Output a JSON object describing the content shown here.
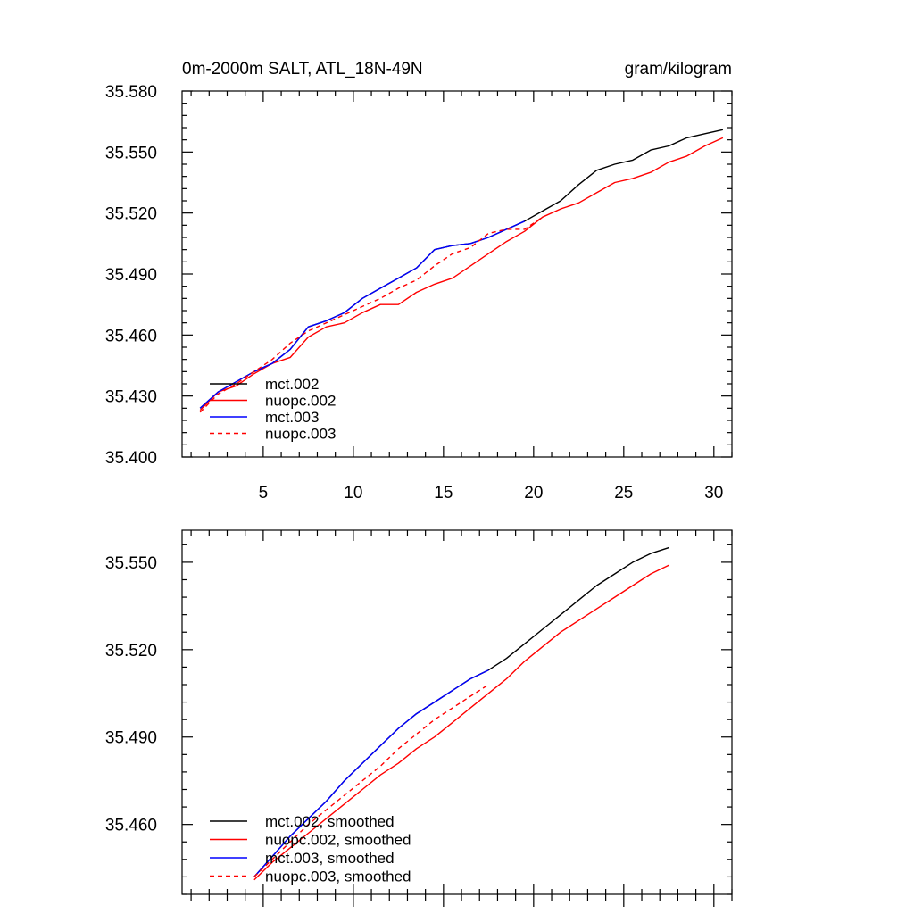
{
  "chart_data": [
    {
      "type": "line",
      "title_left": "0m-2000m SALT, ATL_18N-49N",
      "title_right": "gram/kilogram",
      "xlim": [
        0.5,
        31
      ],
      "ylim": [
        35.4,
        35.58
      ],
      "x_ticks": [
        5,
        10,
        15,
        20,
        25,
        30
      ],
      "x_tick_labels": [
        "5",
        "10",
        "15",
        "20",
        "25",
        "30"
      ],
      "y_ticks": [
        35.4,
        35.43,
        35.46,
        35.49,
        35.52,
        35.55,
        35.58
      ],
      "y_tick_labels": [
        "35.400",
        "35.430",
        "35.460",
        "35.490",
        "35.520",
        "35.550",
        "35.580"
      ],
      "legend_position": "bottom-left",
      "series": [
        {
          "name": "mct.002",
          "color": "#000000",
          "dash": "solid",
          "x": [
            1.5,
            2.5,
            3.5,
            4.5,
            5.5,
            6.5,
            7.5,
            8.5,
            9.5,
            10.5,
            11.5,
            12.5,
            13.5,
            14.5,
            15.5,
            16.5,
            17.5,
            18.5,
            19.5,
            20.5,
            21.5,
            22.5,
            23.5,
            24.5,
            25.5,
            26.5,
            27.5,
            28.5,
            29.5,
            30.5
          ],
          "values": [
            35.424,
            35.432,
            35.437,
            35.442,
            35.446,
            35.453,
            35.464,
            35.467,
            35.471,
            35.478,
            35.483,
            35.488,
            35.493,
            35.502,
            35.504,
            35.505,
            35.508,
            35.512,
            35.516,
            35.521,
            35.526,
            35.534,
            35.541,
            35.544,
            35.546,
            35.551,
            35.553,
            35.557,
            35.559,
            35.561
          ]
        },
        {
          "name": "nuopc.002",
          "color": "#ff0000",
          "dash": "solid",
          "x": [
            1.5,
            2.5,
            3.5,
            4.5,
            5.5,
            6.5,
            7.5,
            8.5,
            9.5,
            10.5,
            11.5,
            12.5,
            13.5,
            14.5,
            15.5,
            16.5,
            17.5,
            18.5,
            19.5,
            20.5,
            21.5,
            22.5,
            23.5,
            24.5,
            25.5,
            26.5,
            27.5,
            28.5,
            29.5,
            30.5
          ],
          "values": [
            35.423,
            35.432,
            35.435,
            35.441,
            35.446,
            35.449,
            35.459,
            35.464,
            35.466,
            35.471,
            35.475,
            35.475,
            35.481,
            35.485,
            35.488,
            35.494,
            35.5,
            35.506,
            35.511,
            35.518,
            35.522,
            35.525,
            35.53,
            35.535,
            35.537,
            35.54,
            35.545,
            35.548,
            35.553,
            35.557
          ]
        },
        {
          "name": "mct.003",
          "color": "#0000ff",
          "dash": "solid",
          "x": [
            1.5,
            2.5,
            3.5,
            4.5,
            5.5,
            6.5,
            7.5,
            8.5,
            9.5,
            10.5,
            11.5,
            12.5,
            13.5,
            14.5,
            15.5,
            16.5,
            17.5,
            18.5,
            19.5
          ],
          "values": [
            35.424,
            35.432,
            35.437,
            35.442,
            35.446,
            35.453,
            35.464,
            35.467,
            35.471,
            35.478,
            35.483,
            35.488,
            35.493,
            35.502,
            35.504,
            35.505,
            35.508,
            35.512,
            35.516
          ]
        },
        {
          "name": "nuopc.003",
          "color": "#ff0000",
          "dash": "dashed",
          "x": [
            1.5,
            2.5,
            3.5,
            4.5,
            5.5,
            6.5,
            7.5,
            8.5,
            9.5,
            10.5,
            11.5,
            12.5,
            13.5,
            14.5,
            15.5,
            16.5,
            17.5,
            18.5,
            19.5,
            20.5
          ],
          "values": [
            35.422,
            35.431,
            35.436,
            35.442,
            35.448,
            35.456,
            35.462,
            35.466,
            35.47,
            35.474,
            35.478,
            35.483,
            35.487,
            35.494,
            35.5,
            35.503,
            35.51,
            35.512,
            35.512,
            35.518
          ]
        }
      ]
    },
    {
      "type": "line",
      "xlim": [
        0.5,
        31
      ],
      "ylim": [
        35.436,
        35.561
      ],
      "x_ticks": [
        5,
        10,
        15,
        20,
        25,
        30
      ],
      "y_ticks": [
        35.46,
        35.49,
        35.52,
        35.55
      ],
      "y_tick_labels": [
        "35.460",
        "35.490",
        "35.520",
        "35.550"
      ],
      "legend_position": "bottom-left",
      "series": [
        {
          "name": "mct.002, smoothed",
          "color": "#000000",
          "dash": "solid",
          "x": [
            4.5,
            5.5,
            6.5,
            7.5,
            8.5,
            9.5,
            10.5,
            11.5,
            12.5,
            13.5,
            14.5,
            15.5,
            16.5,
            17.5,
            18.5,
            19.5,
            20.5,
            21.5,
            22.5,
            23.5,
            24.5,
            25.5,
            26.5,
            27.5
          ],
          "values": [
            35.442,
            35.449,
            35.456,
            35.462,
            35.468,
            35.475,
            35.481,
            35.487,
            35.493,
            35.498,
            35.502,
            35.506,
            35.51,
            35.513,
            35.517,
            35.522,
            35.527,
            35.532,
            35.537,
            35.542,
            35.546,
            35.55,
            35.553,
            35.555
          ]
        },
        {
          "name": "nuopc.002, smoothed",
          "color": "#ff0000",
          "dash": "solid",
          "x": [
            4.5,
            5.5,
            6.5,
            7.5,
            8.5,
            9.5,
            10.5,
            11.5,
            12.5,
            13.5,
            14.5,
            15.5,
            16.5,
            17.5,
            18.5,
            19.5,
            20.5,
            21.5,
            22.5,
            23.5,
            24.5,
            25.5,
            26.5,
            27.5
          ],
          "values": [
            35.441,
            35.447,
            35.452,
            35.457,
            35.462,
            35.467,
            35.472,
            35.477,
            35.481,
            35.486,
            35.49,
            35.495,
            35.5,
            35.505,
            35.51,
            35.516,
            35.521,
            35.526,
            35.53,
            35.534,
            35.538,
            35.542,
            35.546,
            35.549
          ]
        },
        {
          "name": "mct.003, smoothed",
          "color": "#0000ff",
          "dash": "solid",
          "x": [
            4.5,
            5.5,
            6.5,
            7.5,
            8.5,
            9.5,
            10.5,
            11.5,
            12.5,
            13.5,
            14.5,
            15.5,
            16.5,
            17.5
          ],
          "values": [
            35.442,
            35.449,
            35.456,
            35.462,
            35.468,
            35.475,
            35.481,
            35.487,
            35.493,
            35.498,
            35.502,
            35.506,
            35.51,
            35.513
          ]
        },
        {
          "name": "nuopc.003, smoothed",
          "color": "#ff0000",
          "dash": "dashed",
          "x": [
            4.5,
            5.5,
            6.5,
            7.5,
            8.5,
            9.5,
            10.5,
            11.5,
            12.5,
            13.5,
            14.5,
            15.5,
            16.5,
            17.5
          ],
          "values": [
            35.442,
            35.448,
            35.454,
            35.46,
            35.465,
            35.47,
            35.475,
            35.48,
            35.486,
            35.491,
            35.496,
            35.5,
            35.504,
            35.508
          ]
        }
      ]
    }
  ]
}
